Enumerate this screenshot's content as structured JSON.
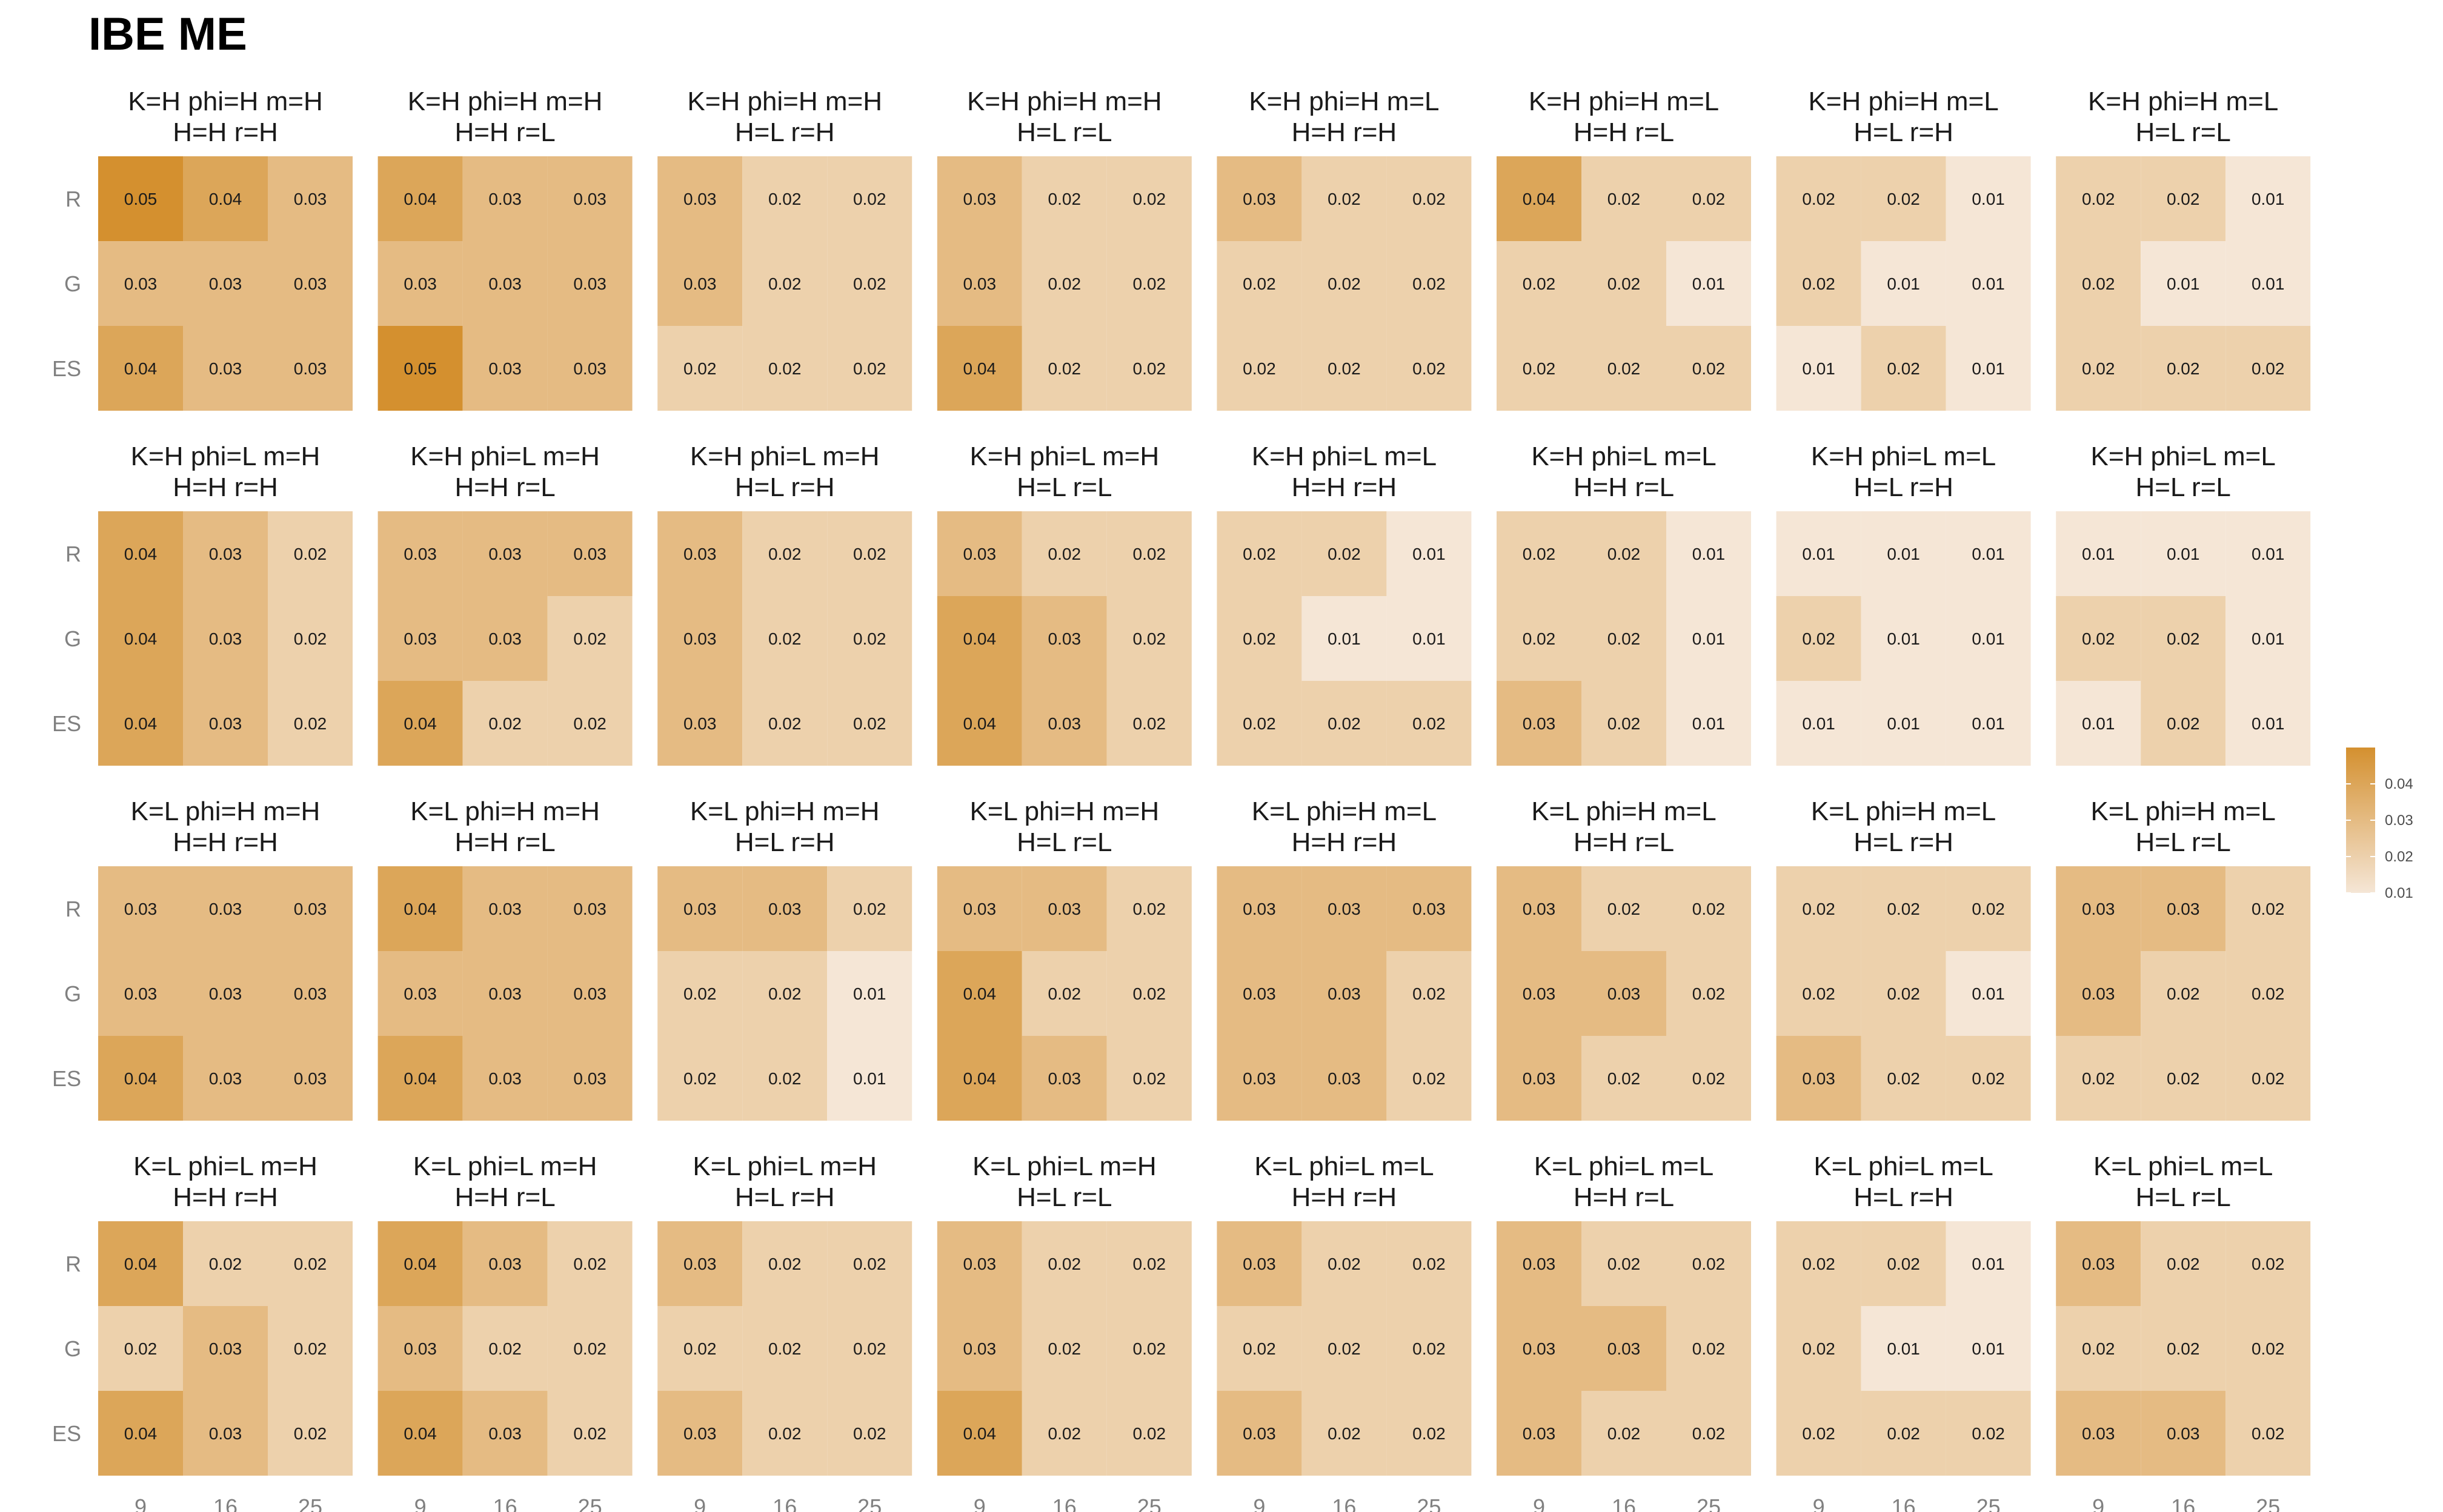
{
  "colors": {
    "low": "#F5E6D6",
    "high": "#D4902F",
    "background": "#FFFFFF"
  },
  "chart_data": {
    "type": "heatmap",
    "title": "IBE ME",
    "x_categories": [
      "9",
      "16",
      "25"
    ],
    "y_categories": [
      "R",
      "G",
      "ES"
    ],
    "color_scale": {
      "min": 0.01,
      "max": 0.05,
      "legend_ticks": [
        "0.04",
        "0.03",
        "0.02",
        "0.01"
      ]
    },
    "facets": [
      {
        "title_line1": "K=H phi=H m=H",
        "title_line2": "H=H r=H",
        "values": [
          [
            "0.05",
            "0.04",
            "0.03"
          ],
          [
            "0.03",
            "0.03",
            "0.03"
          ],
          [
            "0.04",
            "0.03",
            "0.03"
          ]
        ]
      },
      {
        "title_line1": "K=H phi=H m=H",
        "title_line2": "H=H r=L",
        "values": [
          [
            "0.04",
            "0.03",
            "0.03"
          ],
          [
            "0.03",
            "0.03",
            "0.03"
          ],
          [
            "0.05",
            "0.03",
            "0.03"
          ]
        ]
      },
      {
        "title_line1": "K=H phi=H m=H",
        "title_line2": "H=L r=H",
        "values": [
          [
            "0.03",
            "0.02",
            "0.02"
          ],
          [
            "0.03",
            "0.02",
            "0.02"
          ],
          [
            "0.02",
            "0.02",
            "0.02"
          ]
        ]
      },
      {
        "title_line1": "K=H phi=H m=H",
        "title_line2": "H=L r=L",
        "values": [
          [
            "0.03",
            "0.02",
            "0.02"
          ],
          [
            "0.03",
            "0.02",
            "0.02"
          ],
          [
            "0.04",
            "0.02",
            "0.02"
          ]
        ]
      },
      {
        "title_line1": "K=H phi=H m=L",
        "title_line2": "H=H r=H",
        "values": [
          [
            "0.03",
            "0.02",
            "0.02"
          ],
          [
            "0.02",
            "0.02",
            "0.02"
          ],
          [
            "0.02",
            "0.02",
            "0.02"
          ]
        ]
      },
      {
        "title_line1": "K=H phi=H m=L",
        "title_line2": "H=H r=L",
        "values": [
          [
            "0.04",
            "0.02",
            "0.02"
          ],
          [
            "0.02",
            "0.02",
            "0.01"
          ],
          [
            "0.02",
            "0.02",
            "0.02"
          ]
        ]
      },
      {
        "title_line1": "K=H phi=H m=L",
        "title_line2": "H=L r=H",
        "values": [
          [
            "0.02",
            "0.02",
            "0.01"
          ],
          [
            "0.02",
            "0.01",
            "0.01"
          ],
          [
            "0.01",
            "0.02",
            "0.01"
          ]
        ]
      },
      {
        "title_line1": "K=H phi=H m=L",
        "title_line2": "H=L r=L",
        "values": [
          [
            "0.02",
            "0.02",
            "0.01"
          ],
          [
            "0.02",
            "0.01",
            "0.01"
          ],
          [
            "0.02",
            "0.02",
            "0.02"
          ]
        ]
      },
      {
        "title_line1": "K=H phi=L m=H",
        "title_line2": "H=H r=H",
        "values": [
          [
            "0.04",
            "0.03",
            "0.02"
          ],
          [
            "0.04",
            "0.03",
            "0.02"
          ],
          [
            "0.04",
            "0.03",
            "0.02"
          ]
        ]
      },
      {
        "title_line1": "K=H phi=L m=H",
        "title_line2": "H=H r=L",
        "values": [
          [
            "0.03",
            "0.03",
            "0.03"
          ],
          [
            "0.03",
            "0.03",
            "0.02"
          ],
          [
            "0.04",
            "0.02",
            "0.02"
          ]
        ]
      },
      {
        "title_line1": "K=H phi=L m=H",
        "title_line2": "H=L r=H",
        "values": [
          [
            "0.03",
            "0.02",
            "0.02"
          ],
          [
            "0.03",
            "0.02",
            "0.02"
          ],
          [
            "0.03",
            "0.02",
            "0.02"
          ]
        ]
      },
      {
        "title_line1": "K=H phi=L m=H",
        "title_line2": "H=L r=L",
        "values": [
          [
            "0.03",
            "0.02",
            "0.02"
          ],
          [
            "0.04",
            "0.03",
            "0.02"
          ],
          [
            "0.04",
            "0.03",
            "0.02"
          ]
        ]
      },
      {
        "title_line1": "K=H phi=L m=L",
        "title_line2": "H=H r=H",
        "values": [
          [
            "0.02",
            "0.02",
            "0.01"
          ],
          [
            "0.02",
            "0.01",
            "0.01"
          ],
          [
            "0.02",
            "0.02",
            "0.02"
          ]
        ]
      },
      {
        "title_line1": "K=H phi=L m=L",
        "title_line2": "H=H r=L",
        "values": [
          [
            "0.02",
            "0.02",
            "0.01"
          ],
          [
            "0.02",
            "0.02",
            "0.01"
          ],
          [
            "0.03",
            "0.02",
            "0.01"
          ]
        ]
      },
      {
        "title_line1": "K=H phi=L m=L",
        "title_line2": "H=L r=H",
        "values": [
          [
            "0.01",
            "0.01",
            "0.01"
          ],
          [
            "0.02",
            "0.01",
            "0.01"
          ],
          [
            "0.01",
            "0.01",
            "0.01"
          ]
        ]
      },
      {
        "title_line1": "K=H phi=L m=L",
        "title_line2": "H=L r=L",
        "values": [
          [
            "0.01",
            "0.01",
            "0.01"
          ],
          [
            "0.02",
            "0.02",
            "0.01"
          ],
          [
            "0.01",
            "0.02",
            "0.01"
          ]
        ]
      },
      {
        "title_line1": "K=L phi=H m=H",
        "title_line2": "H=H r=H",
        "values": [
          [
            "0.03",
            "0.03",
            "0.03"
          ],
          [
            "0.03",
            "0.03",
            "0.03"
          ],
          [
            "0.04",
            "0.03",
            "0.03"
          ]
        ]
      },
      {
        "title_line1": "K=L phi=H m=H",
        "title_line2": "H=H r=L",
        "values": [
          [
            "0.04",
            "0.03",
            "0.03"
          ],
          [
            "0.03",
            "0.03",
            "0.03"
          ],
          [
            "0.04",
            "0.03",
            "0.03"
          ]
        ]
      },
      {
        "title_line1": "K=L phi=H m=H",
        "title_line2": "H=L r=H",
        "values": [
          [
            "0.03",
            "0.03",
            "0.02"
          ],
          [
            "0.02",
            "0.02",
            "0.01"
          ],
          [
            "0.02",
            "0.02",
            "0.01"
          ]
        ]
      },
      {
        "title_line1": "K=L phi=H m=H",
        "title_line2": "H=L r=L",
        "values": [
          [
            "0.03",
            "0.03",
            "0.02"
          ],
          [
            "0.04",
            "0.02",
            "0.02"
          ],
          [
            "0.04",
            "0.03",
            "0.02"
          ]
        ]
      },
      {
        "title_line1": "K=L phi=H m=L",
        "title_line2": "H=H r=H",
        "values": [
          [
            "0.03",
            "0.03",
            "0.03"
          ],
          [
            "0.03",
            "0.03",
            "0.02"
          ],
          [
            "0.03",
            "0.03",
            "0.02"
          ]
        ]
      },
      {
        "title_line1": "K=L phi=H m=L",
        "title_line2": "H=H r=L",
        "values": [
          [
            "0.03",
            "0.02",
            "0.02"
          ],
          [
            "0.03",
            "0.03",
            "0.02"
          ],
          [
            "0.03",
            "0.02",
            "0.02"
          ]
        ]
      },
      {
        "title_line1": "K=L phi=H m=L",
        "title_line2": "H=L r=H",
        "values": [
          [
            "0.02",
            "0.02",
            "0.02"
          ],
          [
            "0.02",
            "0.02",
            "0.01"
          ],
          [
            "0.03",
            "0.02",
            "0.02"
          ]
        ]
      },
      {
        "title_line1": "K=L phi=H m=L",
        "title_line2": "H=L r=L",
        "values": [
          [
            "0.03",
            "0.03",
            "0.02"
          ],
          [
            "0.03",
            "0.02",
            "0.02"
          ],
          [
            "0.02",
            "0.02",
            "0.02"
          ]
        ]
      },
      {
        "title_line1": "K=L phi=L m=H",
        "title_line2": "H=H r=H",
        "values": [
          [
            "0.04",
            "0.02",
            "0.02"
          ],
          [
            "0.02",
            "0.03",
            "0.02"
          ],
          [
            "0.04",
            "0.03",
            "0.02"
          ]
        ]
      },
      {
        "title_line1": "K=L phi=L m=H",
        "title_line2": "H=H r=L",
        "values": [
          [
            "0.04",
            "0.03",
            "0.02"
          ],
          [
            "0.03",
            "0.02",
            "0.02"
          ],
          [
            "0.04",
            "0.03",
            "0.02"
          ]
        ]
      },
      {
        "title_line1": "K=L phi=L m=H",
        "title_line2": "H=L r=H",
        "values": [
          [
            "0.03",
            "0.02",
            "0.02"
          ],
          [
            "0.02",
            "0.02",
            "0.02"
          ],
          [
            "0.03",
            "0.02",
            "0.02"
          ]
        ]
      },
      {
        "title_line1": "K=L phi=L m=H",
        "title_line2": "H=L r=L",
        "values": [
          [
            "0.03",
            "0.02",
            "0.02"
          ],
          [
            "0.03",
            "0.02",
            "0.02"
          ],
          [
            "0.04",
            "0.02",
            "0.02"
          ]
        ]
      },
      {
        "title_line1": "K=L phi=L m=L",
        "title_line2": "H=H r=H",
        "values": [
          [
            "0.03",
            "0.02",
            "0.02"
          ],
          [
            "0.02",
            "0.02",
            "0.02"
          ],
          [
            "0.03",
            "0.02",
            "0.02"
          ]
        ]
      },
      {
        "title_line1": "K=L phi=L m=L",
        "title_line2": "H=H r=L",
        "values": [
          [
            "0.03",
            "0.02",
            "0.02"
          ],
          [
            "0.03",
            "0.03",
            "0.02"
          ],
          [
            "0.03",
            "0.02",
            "0.02"
          ]
        ]
      },
      {
        "title_line1": "K=L phi=L m=L",
        "title_line2": "H=L r=H",
        "values": [
          [
            "0.02",
            "0.02",
            "0.01"
          ],
          [
            "0.02",
            "0.01",
            "0.01"
          ],
          [
            "0.02",
            "0.02",
            "0.02"
          ]
        ]
      },
      {
        "title_line1": "K=L phi=L m=L",
        "title_line2": "H=L r=L",
        "values": [
          [
            "0.03",
            "0.02",
            "0.02"
          ],
          [
            "0.02",
            "0.02",
            "0.02"
          ],
          [
            "0.03",
            "0.03",
            "0.02"
          ]
        ]
      }
    ]
  }
}
